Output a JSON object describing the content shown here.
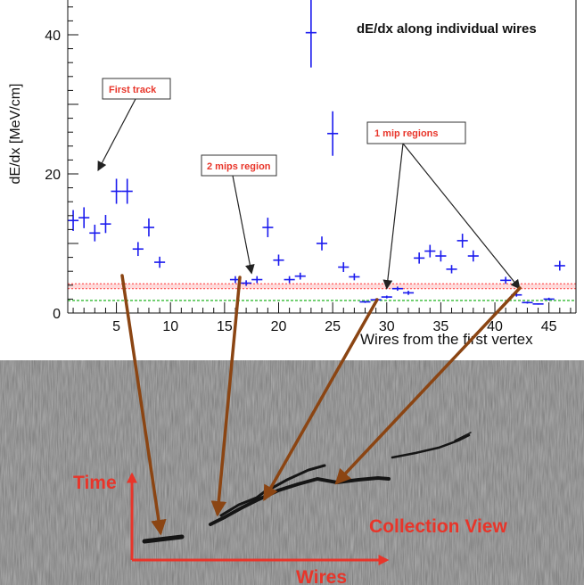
{
  "chart_data": {
    "type": "scatter",
    "title": "dE/dx along individual wires",
    "xlabel": "Wires from the first vertex",
    "ylabel": "dE/dx [MeV/cm]",
    "xlim": [
      0.5,
      47.5
    ],
    "ylim": [
      0,
      45
    ],
    "x_ticks": [
      5,
      10,
      15,
      20,
      25,
      30,
      35,
      40,
      45
    ],
    "y_ticks": [
      0,
      20,
      40
    ],
    "grid": false,
    "series": [
      {
        "marker": "cross-error-bar",
        "color": "#1a1aee",
        "points": [
          {
            "x": 1,
            "y": 13.3,
            "err": 1.5
          },
          {
            "x": 2,
            "y": 13.7,
            "err": 1.5
          },
          {
            "x": 3,
            "y": 11.5,
            "err": 1.2
          },
          {
            "x": 4,
            "y": 12.8,
            "err": 1.3
          },
          {
            "x": 5,
            "y": 17.5,
            "err": 1.8
          },
          {
            "x": 6,
            "y": 17.5,
            "err": 1.8
          },
          {
            "x": 7,
            "y": 9.2,
            "err": 1.0
          },
          {
            "x": 8,
            "y": 12.3,
            "err": 1.3
          },
          {
            "x": 9,
            "y": 7.3,
            "err": 0.8
          },
          {
            "x": 16,
            "y": 4.8,
            "err": 0.5
          },
          {
            "x": 17,
            "y": 4.3,
            "err": 0.4
          },
          {
            "x": 18,
            "y": 4.8,
            "err": 0.5
          },
          {
            "x": 19,
            "y": 12.3,
            "err": 1.4
          },
          {
            "x": 20,
            "y": 7.6,
            "err": 0.8
          },
          {
            "x": 21,
            "y": 4.8,
            "err": 0.5
          },
          {
            "x": 22,
            "y": 5.3,
            "err": 0.5
          },
          {
            "x": 23,
            "y": 40.3,
            "err": 5.0
          },
          {
            "x": 24,
            "y": 10.0,
            "err": 1.0
          },
          {
            "x": 25,
            "y": 25.8,
            "err": 3.2
          },
          {
            "x": 26,
            "y": 6.6,
            "err": 0.7
          },
          {
            "x": 27,
            "y": 5.2,
            "err": 0.5
          },
          {
            "x": 28,
            "y": 1.6,
            "err": 0.15
          },
          {
            "x": 29,
            "y": 1.9,
            "err": 0.2
          },
          {
            "x": 30,
            "y": 2.3,
            "err": 0.2
          },
          {
            "x": 31,
            "y": 3.5,
            "err": 0.3
          },
          {
            "x": 32,
            "y": 2.9,
            "err": 0.3
          },
          {
            "x": 33,
            "y": 7.9,
            "err": 0.8
          },
          {
            "x": 34,
            "y": 8.9,
            "err": 0.9
          },
          {
            "x": 35,
            "y": 8.2,
            "err": 0.8
          },
          {
            "x": 36,
            "y": 6.3,
            "err": 0.6
          },
          {
            "x": 37,
            "y": 10.4,
            "err": 1.0
          },
          {
            "x": 38,
            "y": 8.2,
            "err": 0.8
          },
          {
            "x": 41,
            "y": 4.7,
            "err": 0.5
          },
          {
            "x": 42,
            "y": 2.6,
            "err": 0.25
          },
          {
            "x": 43,
            "y": 1.5,
            "err": 0.15
          },
          {
            "x": 44,
            "y": 1.3,
            "err": 0.1
          },
          {
            "x": 45,
            "y": 2.0,
            "err": 0.2
          },
          {
            "x": 46,
            "y": 6.8,
            "err": 0.7
          }
        ]
      }
    ],
    "bands": [
      {
        "y_min": 3.5,
        "y_max": 4.2,
        "color": "#ff5555"
      },
      {
        "y_min": 1.8,
        "y_max": 1.8,
        "color": "#33bb33"
      }
    ],
    "annotations": [
      {
        "text": "First track",
        "arrow_to": {
          "x": 3.3,
          "y": 20.5
        }
      },
      {
        "text": "2 mips region",
        "arrow_to": {
          "x": 17.5,
          "y": 5.7
        }
      },
      {
        "text": "1 mip regions",
        "arrow_to": [
          {
            "x": 30,
            "y": 3.5
          },
          {
            "x": 42.3,
            "y": 3.5
          }
        ]
      }
    ]
  },
  "event_display": {
    "time_label": "Time",
    "view_label": "Collection View",
    "wires_label": "Wires",
    "accent_color": "#e8352a",
    "link_arrow_color": "#8b4513"
  }
}
